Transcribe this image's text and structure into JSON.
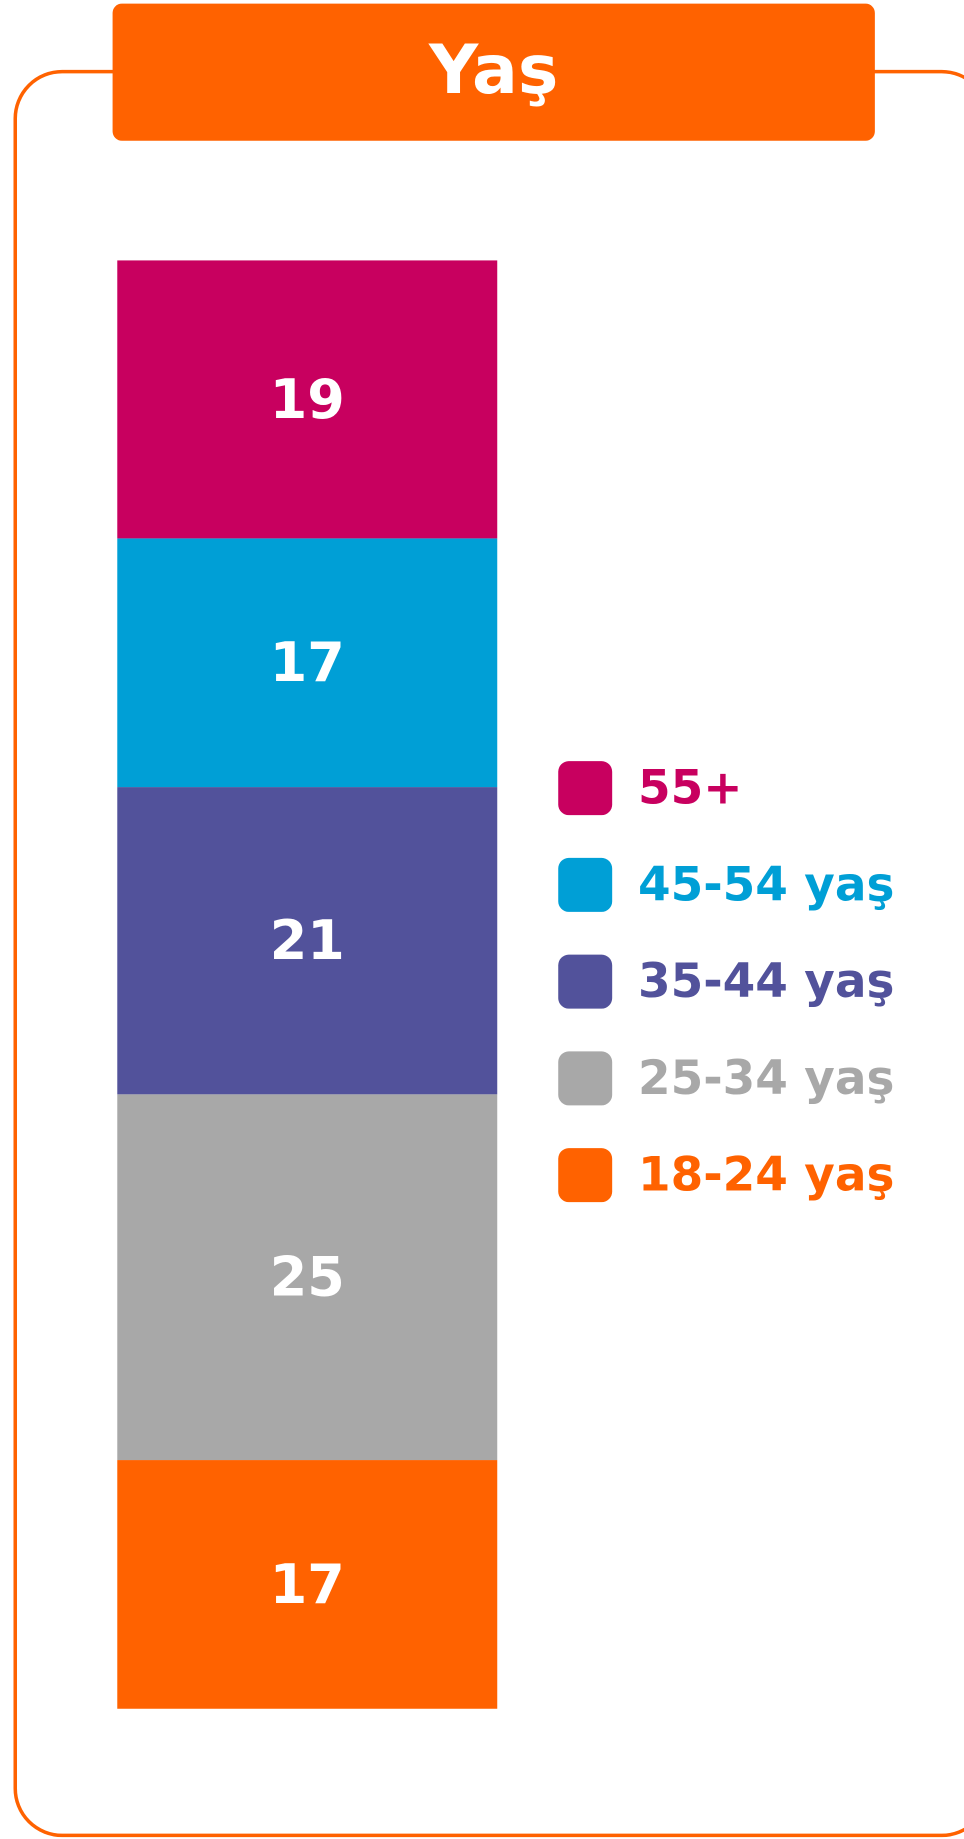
{
  "chart_data": {
    "type": "bar",
    "stacked": true,
    "title": "Yaş",
    "series": [
      {
        "name": "18-24 yaş",
        "color": "#ff6200",
        "values": [
          17
        ]
      },
      {
        "name": "25-34 yaş",
        "color": "#a8a8a8",
        "values": [
          25
        ]
      },
      {
        "name": "35-44 yaş",
        "color": "#52529b",
        "values": [
          21
        ]
      },
      {
        "name": "45-54 yaş",
        "color": "#009fd6",
        "values": [
          17
        ]
      },
      {
        "name": "55+",
        "color": "#c8005f",
        "values": [
          19
        ]
      }
    ]
  }
}
